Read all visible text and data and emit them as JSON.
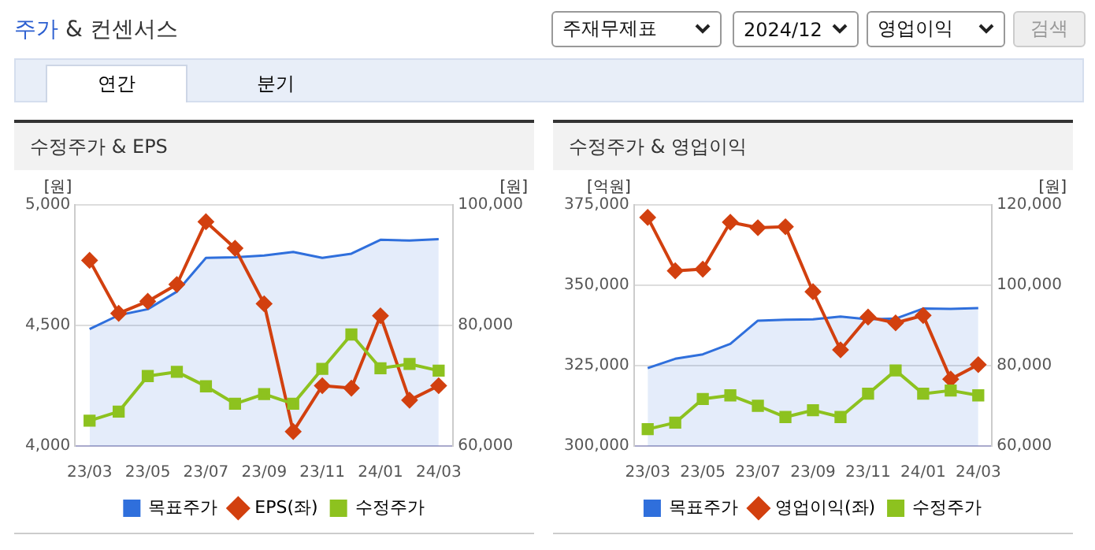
{
  "chart_data": [
    {
      "type": "other",
      "title": "주가 & 컨센서스",
      "annotations": [
        "주재무제표",
        "2024/12",
        "영업이익",
        "검색",
        "연간",
        "분기"
      ]
    },
    {
      "type": "line",
      "title": "수정주가 & EPS",
      "ylabel": "[원]",
      "y2label": "[원]",
      "categories": [
        "23/03",
        null,
        "23/05",
        null,
        "23/07",
        null,
        "23/09",
        null,
        "23/11",
        null,
        "24/01",
        null,
        "24/03"
      ],
      "series": [
        {
          "name": "목표주가",
          "type": "area",
          "axis": "y2",
          "marker": "none",
          "color": "#2f6fdc",
          "values": [
            79400,
            81700,
            82700,
            85600,
            91200,
            91300,
            91600,
            92200,
            91200,
            91900,
            94200,
            94100,
            94300
          ]
        },
        {
          "name": "EPS(좌)",
          "type": "line",
          "marker": "diamond",
          "color": "#d2400f",
          "values": [
            4770,
            4550,
            4600,
            4670,
            4930,
            4820,
            4590,
            4060,
            4250,
            4240,
            4540,
            4190,
            4250
          ]
        },
        {
          "name": "수정주가",
          "type": "line",
          "axis": "y2",
          "marker": "square",
          "color": "#8dc21f",
          "values": [
            64200,
            65700,
            71600,
            72300,
            69900,
            67000,
            68600,
            67000,
            72800,
            78500,
            72900,
            73600,
            72500
          ]
        }
      ],
      "ylim": [
        4000,
        5000
      ],
      "yticks": [
        {
          "value": 4000,
          "label": "4,000"
        },
        {
          "value": 4500,
          "label": "4,500"
        },
        {
          "value": 5000,
          "label": "5,000"
        }
      ],
      "y2lim": [
        60000,
        100000
      ],
      "y2ticks": [
        {
          "value": 60000,
          "label": "60,000"
        },
        {
          "value": 80000,
          "label": "80,000"
        },
        {
          "value": 100000,
          "label": "100,000"
        }
      ],
      "grid": "y",
      "legend": "bottom"
    },
    {
      "type": "line",
      "title": "수정주가 & 영업이익",
      "ylabel": "[억원]",
      "y2label": "[원]",
      "categories": [
        "23/03",
        null,
        "23/05",
        null,
        "23/07",
        null,
        "23/09",
        null,
        "23/11",
        null,
        "24/01",
        null,
        "24/03"
      ],
      "series": [
        {
          "name": "목표주가",
          "type": "area",
          "axis": "y2",
          "marker": "none",
          "color": "#2f6fdc",
          "values": [
            79400,
            81700,
            82800,
            85400,
            91200,
            91400,
            91500,
            92200,
            91500,
            91700,
            94200,
            94100,
            94300
          ]
        },
        {
          "name": "영업이익(좌)",
          "type": "line",
          "marker": "diamond",
          "color": "#d2400f",
          "values": [
            371100,
            354500,
            355000,
            369600,
            367900,
            368200,
            348000,
            329900,
            340100,
            338300,
            340600,
            320800,
            325300
          ]
        },
        {
          "name": "수정주가",
          "type": "line",
          "axis": "y2",
          "marker": "square",
          "color": "#8dc21f",
          "values": [
            64200,
            65800,
            71700,
            72600,
            70000,
            67200,
            68900,
            67200,
            73000,
            78800,
            73000,
            73800,
            72600
          ]
        }
      ],
      "ylim": [
        300000,
        375000
      ],
      "yticks": [
        {
          "value": 300000,
          "label": "300,000"
        },
        {
          "value": 325000,
          "label": "325,000"
        },
        {
          "value": 350000,
          "label": "350,000"
        },
        {
          "value": 375000,
          "label": "375,000"
        }
      ],
      "y2lim": [
        60000,
        120000
      ],
      "y2ticks": [
        {
          "value": 60000,
          "label": "60,000"
        },
        {
          "value": 80000,
          "label": "80,000"
        },
        {
          "value": 100000,
          "label": "100,000"
        },
        {
          "value": 120000,
          "label": "120,000"
        }
      ],
      "grid": "y",
      "legend": "bottom"
    }
  ]
}
